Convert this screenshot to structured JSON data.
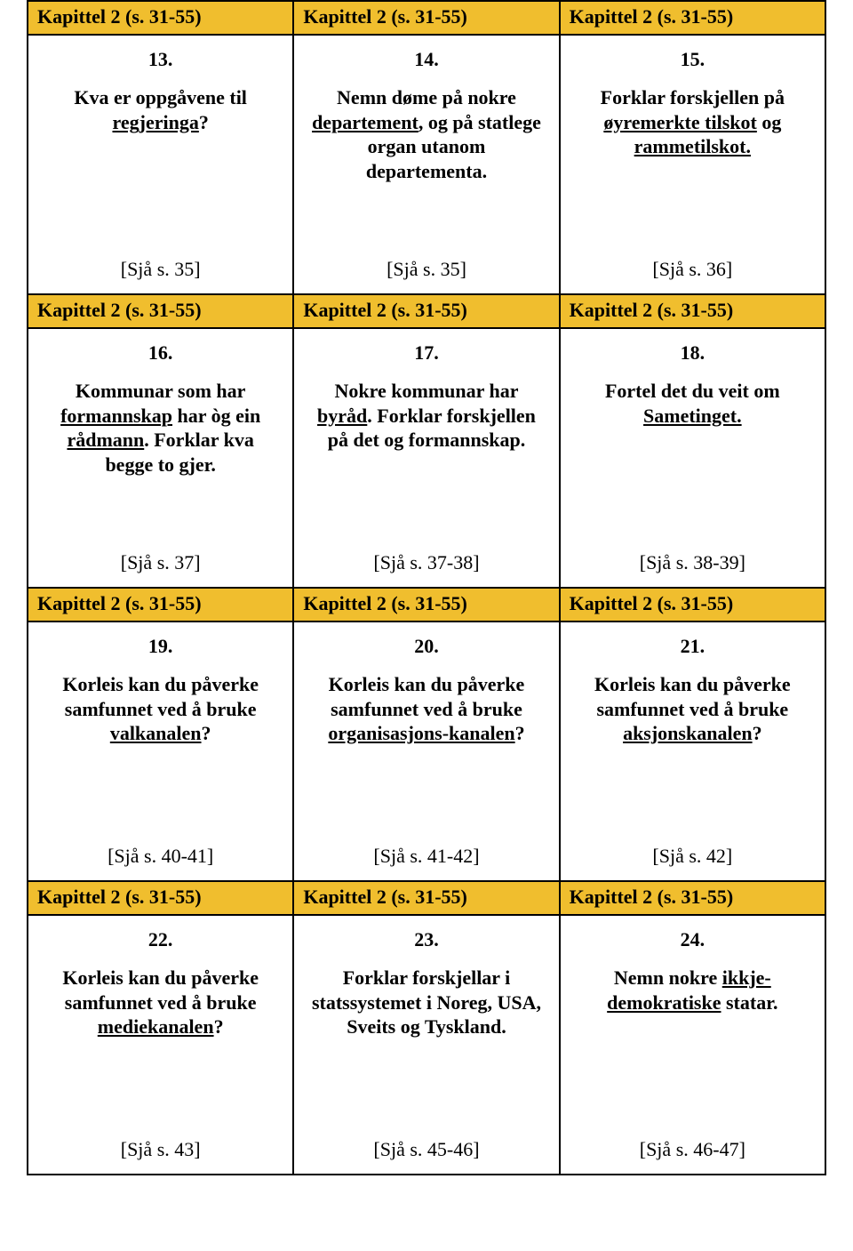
{
  "chapter_label": "Kapittel 2 (s. 31-55)",
  "cards": [
    {
      "num": "13.",
      "segments": [
        {
          "t": "Kva er oppgåvene til "
        },
        {
          "t": "regjeringa",
          "u": true
        },
        {
          "t": "?"
        }
      ],
      "ref": "[Sjå s. 35]"
    },
    {
      "num": "14.",
      "segments": [
        {
          "t": "Nemn døme på nokre "
        },
        {
          "t": "departement",
          "u": true
        },
        {
          "t": ", og på statlege organ utanom departementa."
        }
      ],
      "ref": "[Sjå s. 35]"
    },
    {
      "num": "15.",
      "segments": [
        {
          "t": "Forklar forskjellen på "
        },
        {
          "t": "øyremerkte tilskot",
          "u": true
        },
        {
          "t": " og "
        },
        {
          "t": "rammetilskot.",
          "u": true
        }
      ],
      "ref": "[Sjå s. 36]"
    },
    {
      "num": "16.",
      "segments": [
        {
          "t": "Kommunar som har "
        },
        {
          "t": "formannskap",
          "u": true
        },
        {
          "t": " har òg ein "
        },
        {
          "t": "rådmann",
          "u": true
        },
        {
          "t": ". Forklar kva begge to gjer."
        }
      ],
      "ref": "[Sjå s. 37]"
    },
    {
      "num": "17.",
      "segments": [
        {
          "t": "Nokre kommunar har "
        },
        {
          "t": "byråd",
          "u": true
        },
        {
          "t": ". Forklar forskjellen på det og formannskap."
        }
      ],
      "ref": "[Sjå s. 37-38]"
    },
    {
      "num": "18.",
      "segments": [
        {
          "t": "Fortel det du veit om "
        },
        {
          "t": "Sametinget.",
          "u": true
        }
      ],
      "ref": "[Sjå s. 38-39]"
    },
    {
      "num": "19.",
      "segments": [
        {
          "t": "Korleis kan du påverke samfunnet ved å bruke "
        },
        {
          "t": "valkanalen",
          "u": true
        },
        {
          "t": "?"
        }
      ],
      "ref": "[Sjå s. 40-41]"
    },
    {
      "num": "20.",
      "segments": [
        {
          "t": "Korleis kan du påverke samfunnet ved å bruke "
        },
        {
          "t": "organisasjons-kanalen",
          "u": true
        },
        {
          "t": "?"
        }
      ],
      "ref": "[Sjå s. 41-42]"
    },
    {
      "num": "21.",
      "segments": [
        {
          "t": "Korleis kan du påverke samfunnet ved å bruke "
        },
        {
          "t": "aksjonskanalen",
          "u": true
        },
        {
          "t": "?"
        }
      ],
      "ref": "[Sjå s. 42]"
    },
    {
      "num": "22.",
      "segments": [
        {
          "t": "Korleis kan du påverke samfunnet ved å bruke "
        },
        {
          "t": "mediekanalen",
          "u": true
        },
        {
          "t": "?"
        }
      ],
      "ref": "[Sjå s. 43]"
    },
    {
      "num": "23.",
      "segments": [
        {
          "t": "Forklar forskjellar i statssystemet i Noreg, USA, Sveits og Tyskland."
        }
      ],
      "ref": "[Sjå s. 45-46]"
    },
    {
      "num": "24.",
      "segments": [
        {
          "t": "Nemn nokre "
        },
        {
          "t": "ikkje-demokratiske",
          "u": true
        },
        {
          "t": " statar."
        }
      ],
      "ref": "[Sjå s. 46-47]"
    }
  ],
  "colors": {
    "header_bg": "#f0be2e",
    "border": "#000000",
    "text": "#000000",
    "page_bg": "#ffffff"
  }
}
